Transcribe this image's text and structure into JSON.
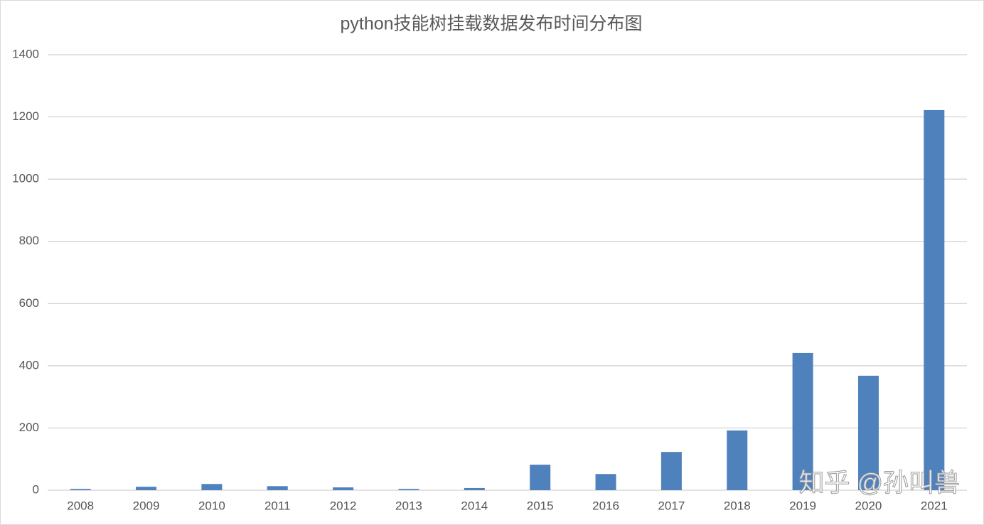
{
  "chart_data": {
    "type": "bar",
    "title": "python技能树挂载数据发布时间分布图",
    "categories": [
      "2008",
      "2009",
      "2010",
      "2011",
      "2012",
      "2013",
      "2014",
      "2015",
      "2016",
      "2017",
      "2018",
      "2019",
      "2020",
      "2021"
    ],
    "values": [
      4,
      11,
      20,
      13,
      9,
      4,
      7,
      82,
      52,
      123,
      192,
      441,
      368,
      1222
    ],
    "color": "#4f81bd",
    "ylim": [
      0,
      1400
    ],
    "yticks": [
      0,
      200,
      400,
      600,
      800,
      1000,
      1200,
      1400
    ],
    "grid": true,
    "watermark": "知乎 @孙叫兽"
  }
}
